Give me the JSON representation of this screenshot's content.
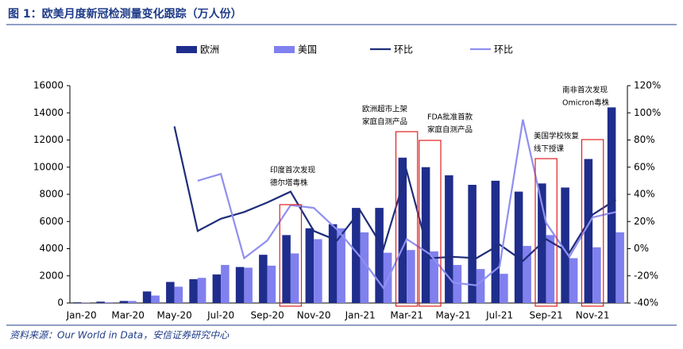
{
  "chart_data": {
    "type": "bar",
    "title": "图 1：欧美月度新冠检测量变化跟踪（万人份）",
    "source": "资料来源：Our World in Data，安信证券研究中心",
    "categories": [
      "Jan-20",
      null,
      "Mar-20",
      null,
      "May-20",
      null,
      "Jul-20",
      null,
      "Sep-20",
      null,
      "Nov-20",
      null,
      "Jan-21",
      null,
      "Mar-21",
      null,
      "May-21",
      null,
      "Jul-21",
      null,
      "Sep-21",
      null,
      "Nov-21",
      null
    ],
    "series": [
      {
        "name": "欧洲",
        "type": "bar",
        "color": "#1f2d8c",
        "values": [
          50,
          100,
          150,
          850,
          1550,
          1750,
          2100,
          2650,
          3550,
          5000,
          5500,
          5800,
          7000,
          7000,
          10700,
          10000,
          9400,
          8700,
          9000,
          8200,
          8800,
          8500,
          10600,
          14400
        ]
      },
      {
        "name": "美国",
        "type": "bar",
        "color": "#8080ef",
        "values": [
          20,
          50,
          150,
          550,
          1200,
          1850,
          2800,
          2600,
          2750,
          3650,
          4700,
          5500,
          5200,
          3700,
          3900,
          3800,
          2800,
          2500,
          2150,
          4200,
          5000,
          3300,
          4100,
          5200
        ]
      },
      {
        "name": "环比",
        "type": "line",
        "axis": "y2",
        "color": "#1f2d7a",
        "values": [
          null,
          null,
          null,
          null,
          90,
          13,
          22,
          27,
          34,
          42,
          13,
          6,
          28,
          0,
          57,
          -7,
          -6,
          -7,
          3,
          -9,
          7,
          -3,
          25,
          36
        ]
      },
      {
        "name": "环比",
        "type": "line",
        "axis": "y2",
        "color": "#8f8ff0",
        "values": [
          null,
          null,
          null,
          null,
          null,
          50,
          55,
          -7,
          6,
          32,
          30,
          14,
          -6,
          -29,
          7,
          -4,
          -25,
          -27,
          -13,
          95,
          19,
          -6,
          23,
          27
        ]
      }
    ],
    "ylim": [
      0,
      16000
    ],
    "yticks": [
      0,
      2000,
      4000,
      6000,
      8000,
      10000,
      12000,
      14000,
      16000
    ],
    "y2lim": [
      -40,
      120
    ],
    "y2ticks": [
      {
        "value": -40,
        "label": "-40%"
      },
      {
        "value": -20,
        "label": "-20%"
      },
      {
        "value": 0,
        "label": "0%"
      },
      {
        "value": 20,
        "label": "20%"
      },
      {
        "value": 40,
        "label": "40%"
      },
      {
        "value": 60,
        "label": "60%"
      },
      {
        "value": 80,
        "label": "80%"
      },
      {
        "value": 100,
        "label": "100%"
      },
      {
        "value": 120,
        "label": "120%"
      }
    ],
    "legend": "top",
    "annotations": [
      {
        "lines": [
          "印度首次发现",
          "德尔塔毒株"
        ]
      },
      {
        "lines": [
          "欧洲超市上架",
          "家庭自测产品"
        ]
      },
      {
        "lines": [
          "FDA批准首款",
          "家庭自测产品"
        ]
      },
      {
        "lines": [
          "美国学校恢复",
          "线下授课"
        ]
      },
      {
        "lines": [
          "南非首次发现",
          "Omicron毒株"
        ]
      }
    ]
  }
}
